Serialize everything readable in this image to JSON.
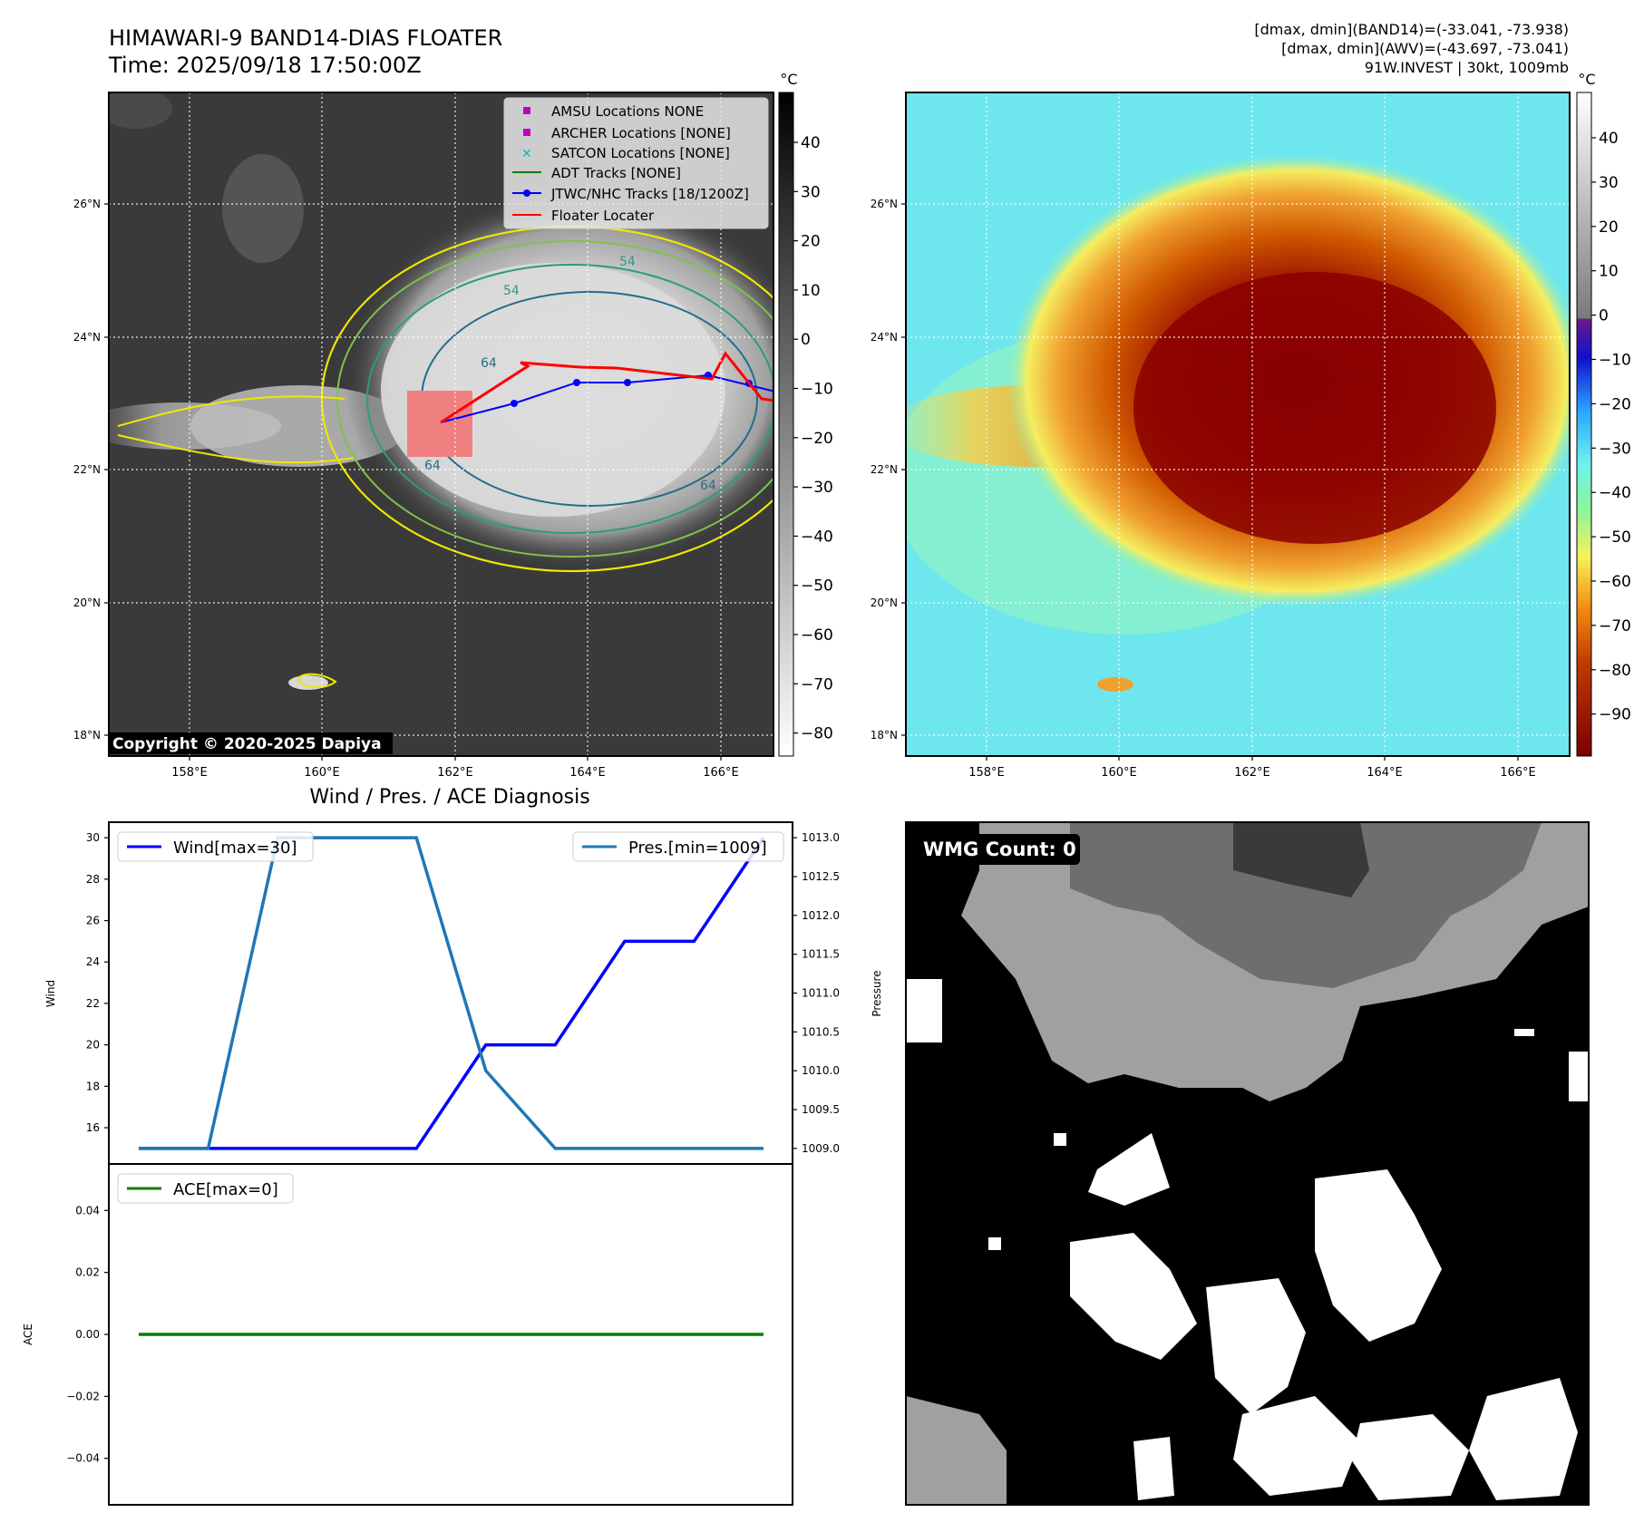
{
  "header": {
    "title": "HIMAWARI-9 BAND14-DIAS FLOATER",
    "time": "Time: 2025/09/18 17:50:00Z",
    "stats_band14": "[dmax, dmin](BAND14)=(-33.041, -73.938)",
    "stats_awv": "[dmax, dmin](AWV)=(-43.697, -73.041)",
    "storm_info": "91W.INVEST | 30kt, 1009mb"
  },
  "maps": {
    "lon_ticks": [
      "158°E",
      "160°E",
      "162°E",
      "164°E",
      "166°E"
    ],
    "lat_ticks": [
      "26°N",
      "24°N",
      "22°N",
      "20°N",
      "18°N"
    ],
    "copyright": "Copyright © 2020-2025 Dapiya",
    "contour_labels": [
      "54",
      "54",
      "64",
      "64",
      "64"
    ],
    "legend": [
      {
        "label": "AMSU Locations NONE",
        "marker": "square",
        "color": "#bf00bf"
      },
      {
        "label": "ARCHER Locations [NONE]",
        "marker": "square",
        "color": "#bf00bf"
      },
      {
        "label": "SATCON Locations [NONE]",
        "marker": "x",
        "color": "#00bfbf"
      },
      {
        "label": "ADT Tracks [NONE]",
        "marker": "line",
        "color": "#008000"
      },
      {
        "label": "JTWC/NHC Tracks [18/1200Z]",
        "marker": "line-dot",
        "color": "#0000ff"
      },
      {
        "label": "Floater Locater",
        "marker": "line",
        "color": "#ff0000"
      }
    ],
    "colorbar_gray": {
      "unit": "°C",
      "ticks": [
        "40",
        "30",
        "20",
        "10",
        "0",
        "−10",
        "−20",
        "−30",
        "−40",
        "−50",
        "−60",
        "−70",
        "−80"
      ]
    },
    "colorbar_color": {
      "unit": "°C",
      "ticks": [
        "40",
        "30",
        "20",
        "10",
        "0",
        "−10",
        "−20",
        "−30",
        "−40",
        "−50",
        "−60",
        "−70",
        "−80",
        "−90"
      ]
    }
  },
  "wmg": {
    "label": "WMG Count: 0"
  },
  "chart_data": [
    {
      "type": "line",
      "title": "Wind / Pres. / ACE Diagnosis",
      "x": [
        0,
        1,
        2,
        3,
        4,
        5,
        6,
        7,
        8,
        9
      ],
      "series": [
        {
          "name": "Wind[max=30]",
          "axis": "left",
          "color": "#0000ff",
          "values": [
            15,
            15,
            15,
            15,
            15,
            20,
            20,
            25,
            25,
            30
          ]
        },
        {
          "name": "Pres.[min=1009]",
          "axis": "right",
          "color": "#1f77b4",
          "values": [
            1009,
            1009,
            1013,
            1013,
            1013,
            1010,
            1009,
            1009,
            1009,
            1009
          ]
        }
      ],
      "ylabel": "Wind",
      "y2label": "Pressure",
      "ylim": [
        14.25,
        30.75
      ],
      "y2lim": [
        1008.8,
        1013.2
      ],
      "yticks": [
        "16",
        "18",
        "20",
        "22",
        "24",
        "26",
        "28",
        "30"
      ],
      "y2ticks": [
        "1009.0",
        "1009.5",
        "1010.0",
        "1010.5",
        "1011.0",
        "1011.5",
        "1012.0",
        "1012.5",
        "1013.0"
      ],
      "legend": [
        "top-left",
        "top-right"
      ]
    },
    {
      "type": "line",
      "x": [
        0,
        1,
        2,
        3,
        4,
        5,
        6,
        7,
        8,
        9
      ],
      "series": [
        {
          "name": "ACE[max=0]",
          "color": "#008000",
          "values": [
            0,
            0,
            0,
            0,
            0,
            0,
            0,
            0,
            0,
            0
          ]
        }
      ],
      "ylabel": "ACE",
      "ylim": [
        -0.055,
        0.055
      ],
      "yticks": [
        "0.04",
        "0.02",
        "0.00",
        "−0.02",
        "−0.04"
      ],
      "legend": "top-left"
    }
  ]
}
